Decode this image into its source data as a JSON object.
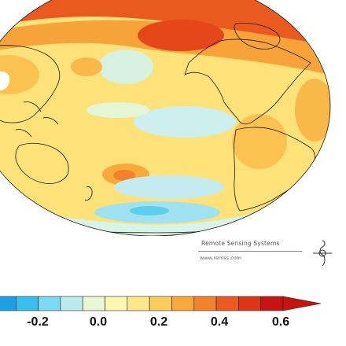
{
  "credit": {
    "name": "Remote Sensing Systems",
    "url": "www.remss.com",
    "logo_icon": "rss-logo-icon"
  },
  "colorbar": {
    "tick_labels": [
      "-0.2",
      "0.0",
      "0.2",
      "0.4",
      "0.6"
    ],
    "tick_values": [
      -0.2,
      0.0,
      0.2,
      0.4,
      0.6
    ],
    "range": [
      -0.45,
      0.72
    ],
    "colors": [
      "#1e9ee6",
      "#36c0ee",
      "#7adcf2",
      "#b9ecee",
      "#eaf7d6",
      "#fbf7b0",
      "#fde889",
      "#fccd5a",
      "#f9a83a",
      "#f2822a",
      "#ea5a1e",
      "#de3516",
      "#c81410"
    ]
  },
  "map": {
    "projection": "Hammersley-Aitoff (Pacific centered)",
    "colors": {
      "ocean_base": "#fde27a",
      "warm": "#f7a33a",
      "hot": "#e5561a",
      "cool": "#cdf0ee",
      "cold": "#7fdbf0",
      "neutral": "#eef7cc",
      "coast": "#1a1a1a"
    }
  }
}
